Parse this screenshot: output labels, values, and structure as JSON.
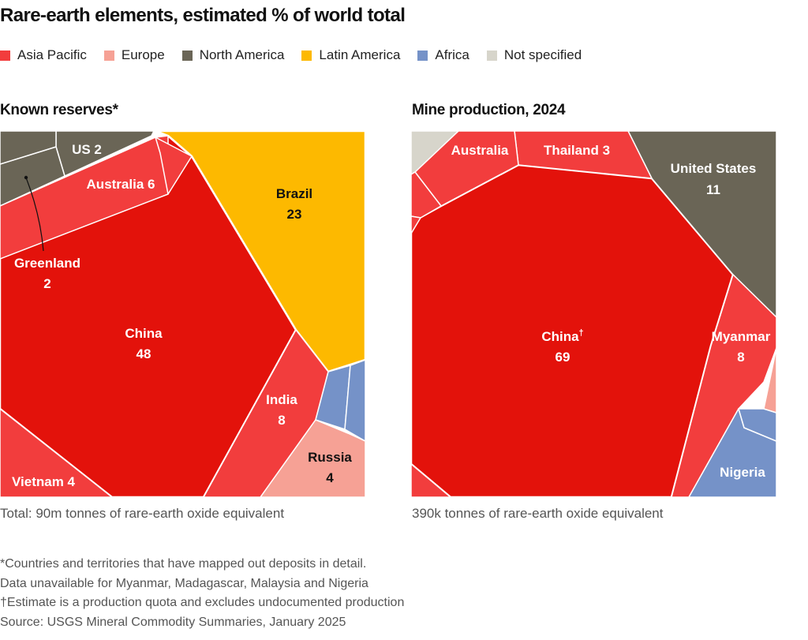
{
  "title": "Rare-earth elements, estimated % of world total",
  "legend": [
    {
      "label": "Asia Pacific",
      "color": "#f23d3d"
    },
    {
      "label": "Europe",
      "color": "#f6a195"
    },
    {
      "label": "North America",
      "color": "#6a6556"
    },
    {
      "label": "Latin America",
      "color": "#fdb900"
    },
    {
      "label": "Africa",
      "color": "#7592c8"
    },
    {
      "label": "Not specified",
      "color": "#d7d5cb"
    }
  ],
  "colors": {
    "china": "#e3120b",
    "asia_pacific": "#f23d3d",
    "europe": "#f6a195",
    "north_america": "#6a6556",
    "latin_america": "#fdb900",
    "africa": "#7592c8",
    "not_specified": "#d7d5cb"
  },
  "chart_data": [
    {
      "type": "treemap-voronoi",
      "title": "Known reserves*",
      "note": "Total: 90m tonnes of rare-earth oxide equivalent",
      "unit": "% of world total",
      "cells": [
        {
          "name": "China",
          "value": 48,
          "region": "Asia Pacific",
          "label": "China",
          "value_label": "48"
        },
        {
          "name": "Brazil",
          "value": 23,
          "region": "Latin America",
          "label": "Brazil",
          "value_label": "23"
        },
        {
          "name": "India",
          "value": 8,
          "region": "Asia Pacific",
          "label": "India",
          "value_label": "8"
        },
        {
          "name": "Australia",
          "value": 6,
          "region": "Asia Pacific",
          "label": "Australia 6"
        },
        {
          "name": "Russia",
          "value": 4,
          "region": "Europe",
          "label": "Russia",
          "value_label": "4"
        },
        {
          "name": "Vietnam",
          "value": 4,
          "region": "Asia Pacific",
          "label": "Vietnam 4"
        },
        {
          "name": "US",
          "value": 2,
          "region": "North America",
          "label": "US 2"
        },
        {
          "name": "Greenland",
          "value": 2,
          "region": "North America",
          "label": "Greenland",
          "value_label": "2"
        },
        {
          "name": "Other North America",
          "value": null,
          "region": "North America"
        },
        {
          "name": "Other Asia Pacific",
          "value": null,
          "region": "Asia Pacific"
        },
        {
          "name": "Africa A",
          "value": null,
          "region": "Africa"
        },
        {
          "name": "Africa B",
          "value": null,
          "region": "Africa"
        }
      ]
    },
    {
      "type": "treemap-voronoi",
      "title": "Mine production, 2024",
      "note": "390k tonnes of rare-earth oxide equivalent",
      "unit": "% of world total",
      "cells": [
        {
          "name": "China",
          "value": 69,
          "region": "Asia Pacific",
          "label": "China",
          "label_sup": "†",
          "value_label": "69"
        },
        {
          "name": "United States",
          "value": 11,
          "region": "North America",
          "label": "United States",
          "value_label": "11"
        },
        {
          "name": "Myanmar",
          "value": 8,
          "region": "Asia Pacific",
          "label": "Myanmar",
          "value_label": "8"
        },
        {
          "name": "Thailand",
          "value": 3,
          "region": "Asia Pacific",
          "label": "Thailand 3"
        },
        {
          "name": "Australia",
          "value": null,
          "region": "Asia Pacific",
          "label": "Australia"
        },
        {
          "name": "Nigeria",
          "value": null,
          "region": "Africa",
          "label": "Nigeria"
        },
        {
          "name": "Other Africa",
          "value": null,
          "region": "Africa"
        },
        {
          "name": "Other Europe",
          "value": null,
          "region": "Europe"
        },
        {
          "name": "Not specified",
          "value": null,
          "region": "Not specified"
        },
        {
          "name": "Other Asia Pacific 1",
          "value": null,
          "region": "Asia Pacific"
        },
        {
          "name": "Other Asia Pacific 2",
          "value": null,
          "region": "Asia Pacific"
        },
        {
          "name": "Other Asia Pacific 3",
          "value": null,
          "region": "Asia Pacific"
        }
      ]
    }
  ],
  "footnotes": [
    "*Countries and territories that have mapped out deposits in detail.",
    "Data unavailable for Myanmar, Madagascar, Malaysia and Nigeria",
    "†Estimate is a production quota and excludes undocumented production",
    "Source: USGS Mineral Commodity Summaries, January 2025"
  ]
}
